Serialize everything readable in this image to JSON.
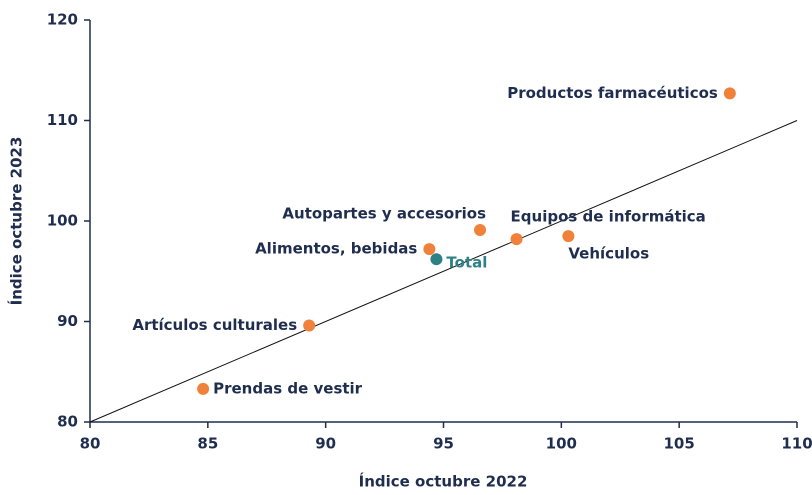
{
  "chart_data": {
    "type": "scatter",
    "x_label": "Índice octubre 2022",
    "y_label": "Índice octubre 2023",
    "xlim": [
      80,
      110
    ],
    "xticks": [
      80,
      85,
      90,
      95,
      100,
      105,
      110
    ],
    "ylim": [
      80,
      120
    ],
    "yticks": [
      80,
      90,
      100,
      110,
      120
    ],
    "reference_line": "y=x",
    "points": [
      {
        "label": "Productos farmacéuticos",
        "x": 107.15,
        "y": 112.7,
        "color": "#f0813a"
      },
      {
        "label": "Autopartes y accesorios",
        "x": 96.55,
        "y": 99.1,
        "color": "#f0813a"
      },
      {
        "label": "Equipos de informática",
        "x": 98.1,
        "y": 98.2,
        "color": "#f0813a"
      },
      {
        "label": "Vehículos",
        "x": 100.3,
        "y": 98.5,
        "color": "#f0813a"
      },
      {
        "label": "Alimentos, bebidas",
        "x": 94.4,
        "y": 97.2,
        "color": "#f0813a"
      },
      {
        "label": "Total",
        "x": 94.7,
        "y": 96.2,
        "color": "#2e8087"
      },
      {
        "label": "Artículos culturales",
        "x": 89.3,
        "y": 89.6,
        "color": "#f0813a"
      },
      {
        "label": "Prendas de vestir",
        "x": 84.8,
        "y": 83.3,
        "color": "#f0813a"
      }
    ]
  }
}
